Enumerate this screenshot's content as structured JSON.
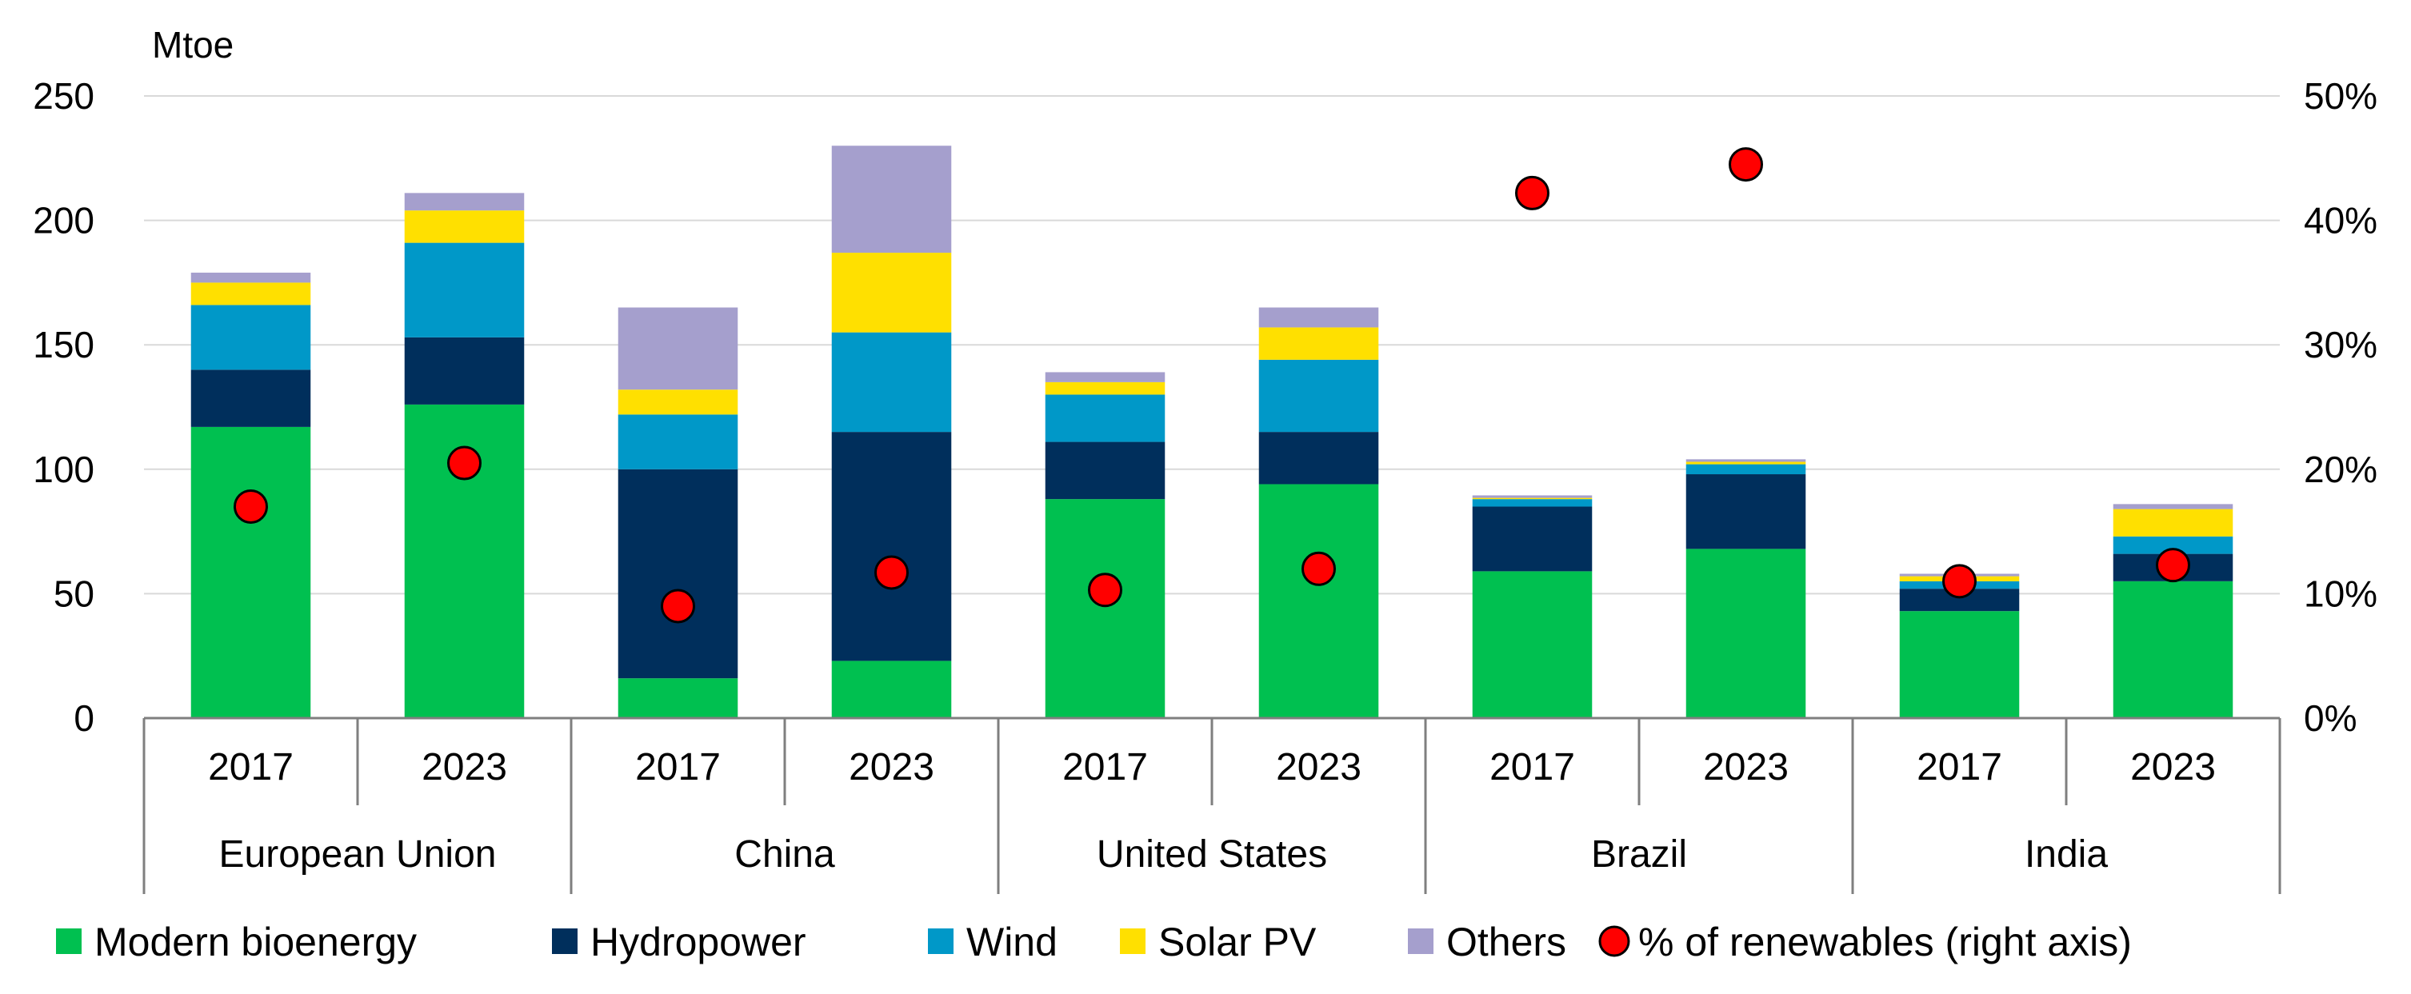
{
  "chart_data": {
    "type": "bar",
    "stacked": true,
    "unit_label": "Mtoe",
    "y_left": {
      "min": 0,
      "max": 250,
      "ticks": [
        0,
        50,
        100,
        150,
        200,
        250
      ]
    },
    "y_right": {
      "min": 0,
      "max": 50,
      "ticks": [
        "0%",
        "10%",
        "20%",
        "30%",
        "40%",
        "50%"
      ]
    },
    "grid": true,
    "groups": [
      {
        "label": "European Union",
        "years": [
          "2017",
          "2023"
        ]
      },
      {
        "label": "China",
        "years": [
          "2017",
          "2023"
        ]
      },
      {
        "label": "United States",
        "years": [
          "2017",
          "2023"
        ]
      },
      {
        "label": "Brazil",
        "years": [
          "2017",
          "2023"
        ]
      },
      {
        "label": "India",
        "years": [
          "2017",
          "2023"
        ]
      }
    ],
    "categories": [
      "European Union 2017",
      "European Union 2023",
      "China 2017",
      "China 2023",
      "United States 2017",
      "United States 2023",
      "Brazil 2017",
      "Brazil 2023",
      "India 2017",
      "India 2023"
    ],
    "series": [
      {
        "name": "Modern bioenergy",
        "color": "#00c050",
        "values": [
          117,
          126,
          16,
          23,
          88,
          94,
          59,
          68,
          43,
          55
        ]
      },
      {
        "name": "Hydropower",
        "color": "#002f5c",
        "values": [
          23,
          27,
          84,
          92,
          23,
          21,
          26,
          30,
          9,
          11
        ]
      },
      {
        "name": "Wind",
        "color": "#0098c8",
        "values": [
          26,
          38,
          22,
          40,
          19,
          29,
          3,
          4,
          3,
          7
        ]
      },
      {
        "name": "Solar PV",
        "color": "#ffe000",
        "values": [
          9,
          13,
          10,
          32,
          5,
          13,
          0.5,
          1,
          2,
          11
        ]
      },
      {
        "name": "Others",
        "color": "#a59fcd",
        "values": [
          4,
          7,
          33,
          43,
          4,
          8,
          1,
          1,
          1,
          2
        ]
      }
    ],
    "dots": {
      "name": "% of renewables (right axis)",
      "color": "#ff0000",
      "values": [
        17,
        20.5,
        9,
        11.7,
        10.3,
        12,
        42.2,
        44.5,
        11,
        12.3
      ]
    },
    "legend_position": "bottom"
  }
}
